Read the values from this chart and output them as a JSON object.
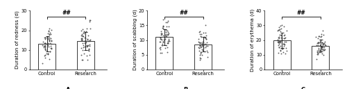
{
  "panels": [
    {
      "label": "A",
      "ylabel": "Duration of redness (d)",
      "ylim": [
        0,
        30
      ],
      "yticks": [
        0,
        10,
        20,
        30
      ],
      "control_mean": 13.0,
      "control_sd": 4.5,
      "research_mean": 15.0,
      "research_sd": 4.5,
      "control_n": 60,
      "research_n": 60,
      "control_seed": 11,
      "research_seed": 12,
      "control_min": 3,
      "control_max": 26,
      "research_min": 5,
      "research_max": 25
    },
    {
      "label": "B",
      "ylabel": "Duration of scabbing (d)",
      "ylim": [
        0,
        20
      ],
      "yticks": [
        0,
        5,
        10,
        15,
        20
      ],
      "control_mean": 10.5,
      "control_sd": 3.0,
      "research_mean": 8.8,
      "research_sd": 2.5,
      "control_n": 60,
      "research_n": 60,
      "control_seed": 13,
      "research_seed": 14,
      "control_min": 3,
      "control_max": 18,
      "research_min": 3,
      "research_max": 15
    },
    {
      "label": "C",
      "ylabel": "Duration of erythema (d)",
      "ylim": [
        0,
        40
      ],
      "yticks": [
        0,
        10,
        20,
        30,
        40
      ],
      "control_mean": 20.0,
      "control_sd": 5.0,
      "research_mean": 16.0,
      "research_sd": 4.0,
      "control_n": 60,
      "research_n": 60,
      "control_seed": 15,
      "research_seed": 16,
      "control_min": 8,
      "control_max": 32,
      "research_min": 7,
      "research_max": 28
    }
  ],
  "bar_color": "#ffffff",
  "bar_edge_color": "#000000",
  "dot_color": "#444444",
  "error_color": "#000000",
  "sig_text": "##",
  "xlabel_control": "Control",
  "xlabel_research": "Research",
  "bar_width": 0.45,
  "dot_size": 1.8,
  "dot_alpha": 0.85,
  "font_size": 5.0,
  "ylabel_font_size": 5.2,
  "tick_font_size": 4.8,
  "panel_label_font_size": 6.0,
  "sig_font_size": 5.5
}
